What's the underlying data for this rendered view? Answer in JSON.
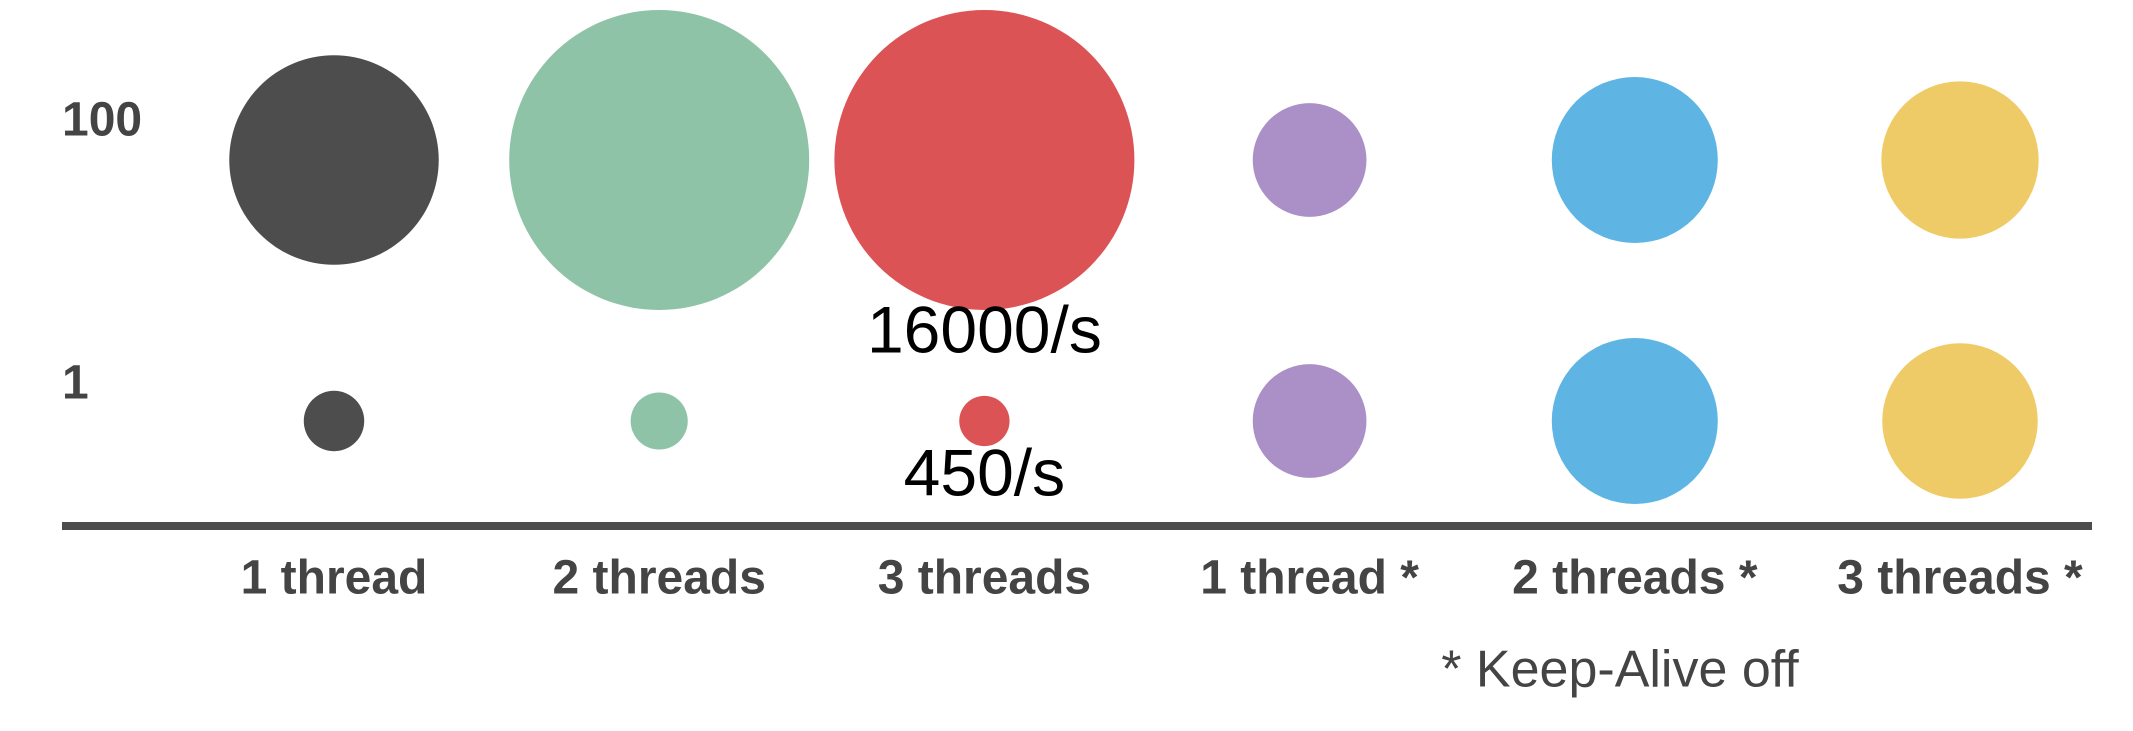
{
  "chart_data": {
    "type": "bubble",
    "categories": [
      "1 thread",
      "2 threads",
      "3 threads",
      "1 thread *",
      "2 threads *",
      "3 threads *"
    ],
    "colors": [
      "#4d4d4d",
      "#8fc3a7",
      "#dc5356",
      "#ab90c8",
      "#5eb5e4",
      "#efcb67"
    ],
    "series": [
      {
        "name": "100",
        "values": [
          7800,
          16000,
          16000,
          2300,
          4900,
          4400
        ],
        "value_labels": [
          null,
          null,
          "16000/s",
          null,
          null,
          null
        ]
      },
      {
        "name": "1",
        "values": [
          650,
          580,
          450,
          2300,
          4900,
          4300
        ],
        "value_labels": [
          null,
          null,
          "450/s",
          null,
          null,
          null
        ]
      }
    ],
    "note": "* Keep-Alive off"
  }
}
